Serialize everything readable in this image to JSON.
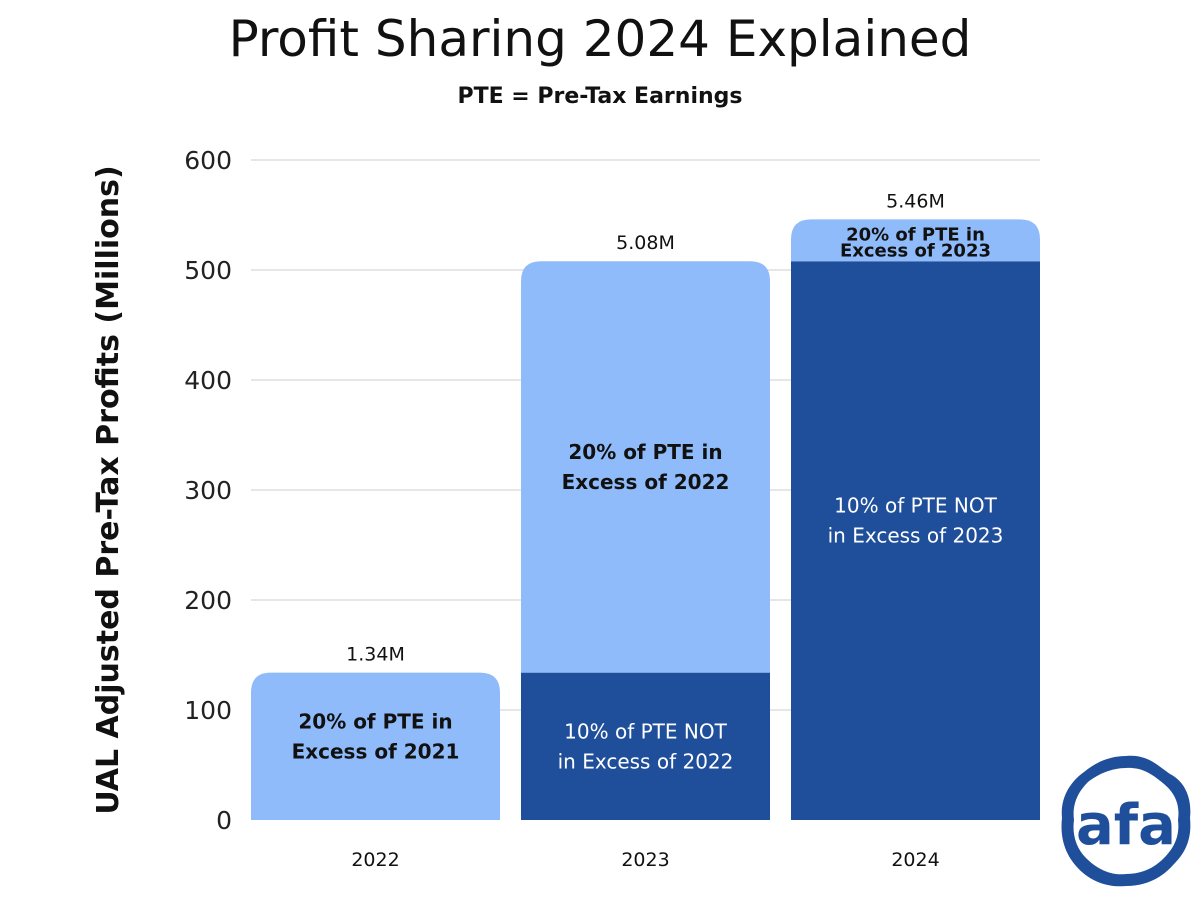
{
  "chart_data": {
    "type": "bar",
    "stacked": true,
    "title": "Profit Sharing 2024 Explained",
    "subtitle": "PTE = Pre-Tax Earnings",
    "xlabel": "",
    "ylabel": "UAL Adjusted Pre-Tax Profits (Millions)",
    "ylim": [
      0,
      600
    ],
    "yticks": [
      0,
      100,
      200,
      300,
      400,
      500,
      600
    ],
    "grid": true,
    "categories": [
      "2022",
      "2023",
      "2024"
    ],
    "bars": [
      {
        "category": "2022",
        "total_label": "1.34M",
        "segments": [
          {
            "value": 134,
            "color": "#8fbbfa",
            "label": [
              "20% of PTE in",
              "Excess of 2021"
            ],
            "label_color": "#111111",
            "bold": true
          }
        ]
      },
      {
        "category": "2023",
        "total_label": "5.08M",
        "segments": [
          {
            "value": 134,
            "color": "#1f4f9b",
            "label": [
              "10% of PTE NOT",
              "in Excess of 2022"
            ],
            "label_color": "#ffffff",
            "bold": false
          },
          {
            "value": 374,
            "color": "#8fbbfa",
            "label": [
              "20% of PTE in",
              "Excess of 2022"
            ],
            "label_color": "#111111",
            "bold": true
          }
        ]
      },
      {
        "category": "2024",
        "total_label": "5.46M",
        "segments": [
          {
            "value": 508,
            "color": "#1f4f9b",
            "label": [
              "10% of PTE NOT",
              "in Excess of 2023"
            ],
            "label_color": "#ffffff",
            "bold": false
          },
          {
            "value": 38,
            "color": "#8fbbfa",
            "label": [
              "20% of PTE in",
              "Excess of 2023"
            ],
            "label_color": "#111111",
            "bold": true
          }
        ]
      }
    ]
  },
  "logo": {
    "text": "afa",
    "color": "#1f4f9b"
  }
}
